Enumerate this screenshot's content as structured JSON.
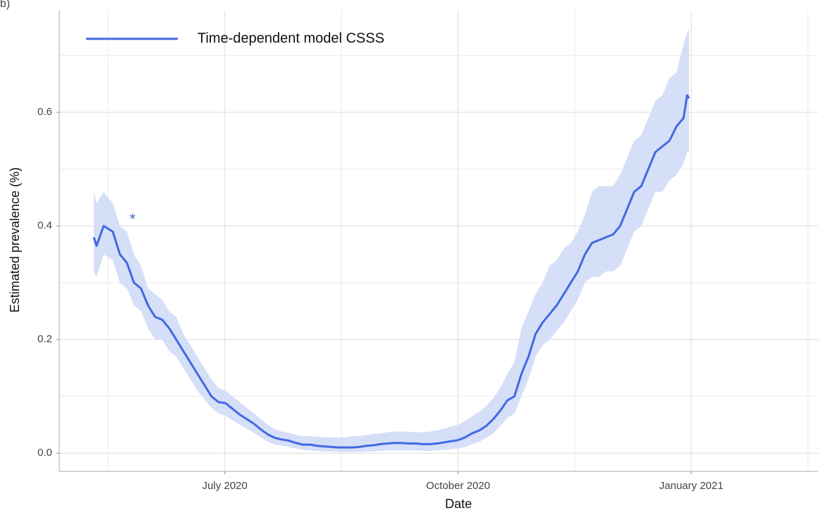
{
  "chart_data": {
    "type": "line",
    "panel_label": "b)",
    "xlabel": "Date",
    "ylabel": "Estimated prevalence (%)",
    "xlim": [
      2020.3225,
      2021.136
    ],
    "ylim": [
      -0.032,
      0.779
    ],
    "xticks": [
      {
        "value": 2020.5,
        "label": "July 2020"
      },
      {
        "value": 2020.75,
        "label": "October 2020"
      },
      {
        "value": 2021.0,
        "label": "January 2021"
      }
    ],
    "yticks": [
      {
        "value": 0,
        "label": "0.0"
      },
      0.2,
      0.4,
      0.6
    ],
    "x_minor_grid": [
      2020.375,
      2020.625,
      2020.875,
      2021.125
    ],
    "y_minor_grid": [
      0.1,
      0.3,
      0.5,
      0.7
    ],
    "grid": true,
    "legend_position": "top-left",
    "ribbon_color": "#d6dff8",
    "x": [
      2020.3595,
      2020.3625,
      2020.3701,
      2020.3799,
      2020.3875,
      2020.395,
      2020.4026,
      2020.4101,
      2020.4177,
      2020.4252,
      2020.4328,
      2020.4403,
      2020.4479,
      2020.4554,
      2020.463,
      2020.4705,
      2020.4781,
      2020.4856,
      2020.4932,
      2020.5008,
      2020.5083,
      2020.5159,
      2020.5234,
      2020.531,
      2020.5385,
      2020.5461,
      2020.5536,
      2020.5612,
      2020.5687,
      2020.5763,
      2020.5838,
      2020.5914,
      2020.5989,
      2020.6065,
      2020.614,
      2020.6216,
      2020.6292,
      2020.6367,
      2020.6443,
      2020.6518,
      2020.6594,
      2020.6669,
      2020.6745,
      2020.682,
      2020.6896,
      2020.6971,
      2020.7047,
      2020.7122,
      2020.7198,
      2020.7273,
      2020.7349,
      2020.7424,
      2020.75,
      2020.7576,
      2020.7651,
      2020.7727,
      2020.7802,
      2020.7878,
      2020.7953,
      2020.8029,
      2020.8104,
      2020.818,
      2020.8255,
      2020.8331,
      2020.8406,
      2020.8482,
      2020.8557,
      2020.8633,
      2020.8708,
      2020.8784,
      2020.886,
      2020.8935,
      2020.9011,
      2020.9086,
      2020.9162,
      2020.9237,
      2020.9313,
      2020.9388,
      2020.9464,
      2020.9539,
      2020.9615,
      2020.969,
      2020.9766,
      2020.9841,
      2020.9917,
      2020.9955,
      2020.9977
    ],
    "series": [
      {
        "name": "Time-dependent model CSSS",
        "color": "#4169e1",
        "values": [
          0.38,
          0.365,
          0.4,
          0.39,
          0.35,
          0.335,
          0.3,
          0.29,
          0.26,
          0.24,
          0.235,
          0.22,
          0.2,
          0.18,
          0.16,
          0.14,
          0.12,
          0.1,
          0.09,
          0.088,
          0.078,
          0.068,
          0.06,
          0.052,
          0.042,
          0.033,
          0.027,
          0.024,
          0.022,
          0.018,
          0.015,
          0.015,
          0.013,
          0.012,
          0.011,
          0.01,
          0.01,
          0.01,
          0.011,
          0.013,
          0.014,
          0.016,
          0.017,
          0.018,
          0.018,
          0.017,
          0.017,
          0.016,
          0.016,
          0.017,
          0.019,
          0.021,
          0.023,
          0.028,
          0.035,
          0.04,
          0.048,
          0.06,
          0.075,
          0.093,
          0.1,
          0.14,
          0.17,
          0.21,
          0.23,
          0.245,
          0.26,
          0.28,
          0.3,
          0.32,
          0.35,
          0.37,
          0.375,
          0.38,
          0.385,
          0.4,
          0.43,
          0.46,
          0.47,
          0.5,
          0.53,
          0.54,
          0.55,
          0.575,
          0.59,
          0.63,
          0.625
        ],
        "lower": [
          0.32,
          0.31,
          0.35,
          0.34,
          0.3,
          0.29,
          0.26,
          0.25,
          0.22,
          0.2,
          0.2,
          0.18,
          0.17,
          0.15,
          0.13,
          0.11,
          0.095,
          0.08,
          0.07,
          0.066,
          0.058,
          0.05,
          0.043,
          0.036,
          0.028,
          0.02,
          0.015,
          0.013,
          0.011,
          0.008,
          0.006,
          0.005,
          0.004,
          0.003,
          0.003,
          0.002,
          0.002,
          0.002,
          0.002,
          0.003,
          0.003,
          0.004,
          0.005,
          0.005,
          0.005,
          0.005,
          0.005,
          0.004,
          0.004,
          0.005,
          0.006,
          0.007,
          0.008,
          0.011,
          0.016,
          0.02,
          0.027,
          0.035,
          0.048,
          0.062,
          0.07,
          0.1,
          0.13,
          0.17,
          0.19,
          0.2,
          0.215,
          0.23,
          0.25,
          0.27,
          0.3,
          0.31,
          0.31,
          0.32,
          0.32,
          0.33,
          0.36,
          0.39,
          0.4,
          0.43,
          0.46,
          0.46,
          0.48,
          0.49,
          0.51,
          0.53,
          0.53
        ],
        "upper": [
          0.46,
          0.44,
          0.46,
          0.44,
          0.4,
          0.39,
          0.35,
          0.33,
          0.29,
          0.28,
          0.27,
          0.25,
          0.24,
          0.21,
          0.19,
          0.17,
          0.15,
          0.13,
          0.115,
          0.11,
          0.1,
          0.09,
          0.08,
          0.07,
          0.06,
          0.05,
          0.042,
          0.038,
          0.036,
          0.032,
          0.03,
          0.03,
          0.029,
          0.028,
          0.028,
          0.028,
          0.028,
          0.03,
          0.03,
          0.032,
          0.034,
          0.035,
          0.037,
          0.038,
          0.038,
          0.038,
          0.037,
          0.037,
          0.038,
          0.04,
          0.043,
          0.047,
          0.05,
          0.057,
          0.065,
          0.073,
          0.083,
          0.097,
          0.115,
          0.14,
          0.16,
          0.22,
          0.25,
          0.28,
          0.3,
          0.33,
          0.34,
          0.36,
          0.37,
          0.39,
          0.42,
          0.46,
          0.47,
          0.47,
          0.47,
          0.49,
          0.52,
          0.55,
          0.56,
          0.59,
          0.62,
          0.63,
          0.66,
          0.67,
          0.72,
          0.74,
          0.745
        ]
      }
    ],
    "annotations": [
      {
        "text": "*",
        "x": 2020.4011,
        "y": 0.41,
        "color": "#4169e1"
      }
    ]
  }
}
